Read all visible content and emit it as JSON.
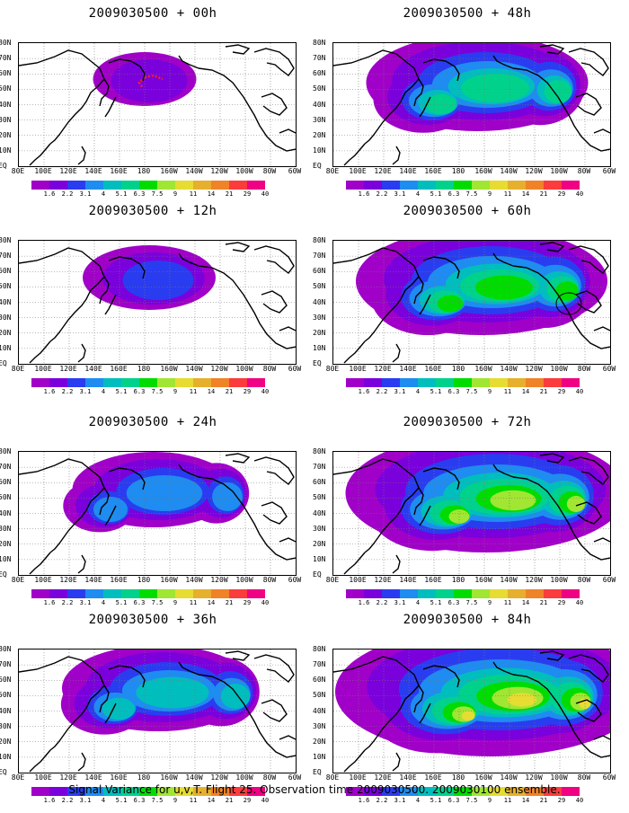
{
  "panels": [
    {
      "title": "2009030500 + 00h",
      "level": 0
    },
    {
      "title": "2009030500 + 48h",
      "level": 4
    },
    {
      "title": "2009030500 + 12h",
      "level": 1
    },
    {
      "title": "2009030500 + 60h",
      "level": 5
    },
    {
      "title": "2009030500 + 24h",
      "level": 2
    },
    {
      "title": "2009030500 + 72h",
      "level": 6
    },
    {
      "title": "2009030500 + 36h",
      "level": 3
    },
    {
      "title": "2009030500 + 84h",
      "level": 7
    }
  ],
  "lat_labels": [
    "80N",
    "70N",
    "60N",
    "50N",
    "40N",
    "30N",
    "20N",
    "10N",
    "EQ"
  ],
  "lon_labels": [
    "80E",
    "100E",
    "120E",
    "140E",
    "160E",
    "180",
    "160W",
    "140W",
    "120W",
    "100W",
    "80W",
    "60W"
  ],
  "colorbar": {
    "labels": [
      "1.6",
      "2.2",
      "3.1",
      "4",
      "5.1",
      "6.3",
      "7.5",
      "9",
      "11",
      "14",
      "21",
      "29",
      "40"
    ],
    "colors": [
      "#a000c8",
      "#7a00dc",
      "#2a3cf0",
      "#1e8cf0",
      "#00bebe",
      "#00d28c",
      "#00dc00",
      "#a0e632",
      "#e6dc32",
      "#e6af2d",
      "#f08228",
      "#fa3c3c",
      "#f00082"
    ]
  },
  "caption": "Signal Variance for u,v,T. Flight 25. Observation time 2009030500. 2009030100 ensemble."
}
